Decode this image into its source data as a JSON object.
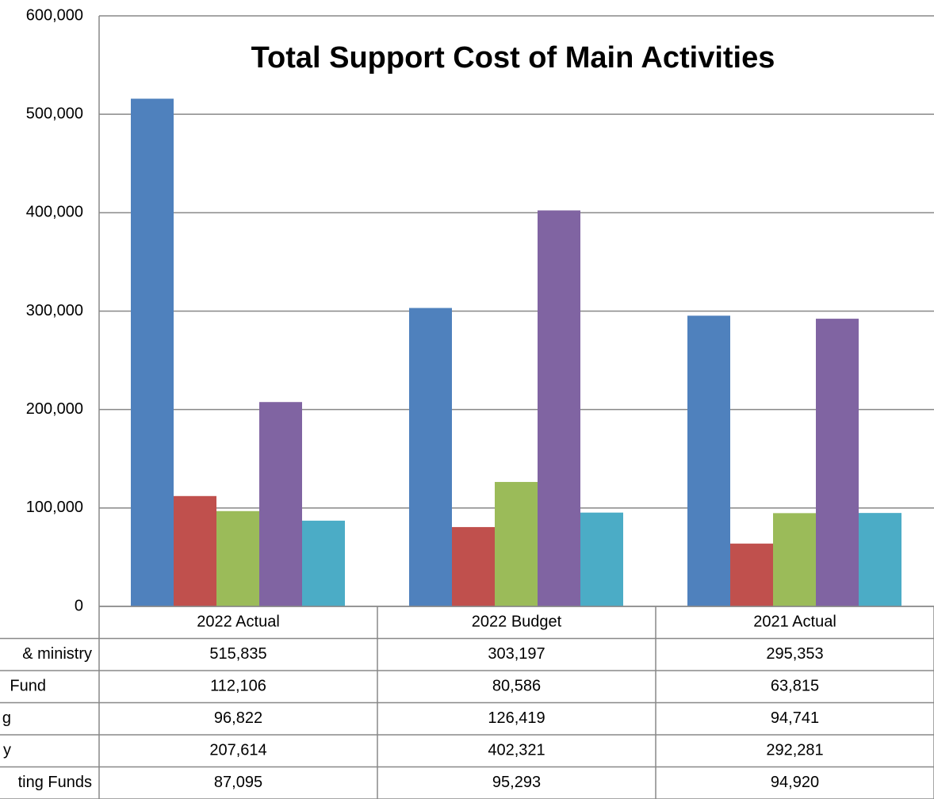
{
  "chart_data": {
    "type": "bar",
    "title": "Total Support Cost of Main Activities",
    "categories": [
      "2022 Actual",
      "2022 Budget",
      "2021 Actual"
    ],
    "series": [
      {
        "name": "& ministry",
        "color": "#4f81bd",
        "values": [
          515835,
          303197,
          295353
        ],
        "value_labels": [
          "515,835",
          "303,197",
          "295,353"
        ]
      },
      {
        "name": "Fund",
        "color": "#c0504d",
        "values": [
          112106,
          80586,
          63815
        ],
        "value_labels": [
          "112,106",
          "80,586",
          "63,815"
        ]
      },
      {
        "name": "g",
        "color": "#9bbb59",
        "values": [
          96822,
          126419,
          94741
        ],
        "value_labels": [
          "96,822",
          "126,419",
          "94,741"
        ]
      },
      {
        "name": "y",
        "color": "#8064a2",
        "values": [
          207614,
          402321,
          292281
        ],
        "value_labels": [
          "207,614",
          "402,321",
          "292,281"
        ]
      },
      {
        "name": "ting Funds",
        "color": "#4bacc6",
        "values": [
          87095,
          95293,
          94920
        ],
        "value_labels": [
          "87,095",
          "95,293",
          "94,920"
        ]
      }
    ],
    "ylim": [
      0,
      600000
    ],
    "yticks": [
      0,
      {
        "value": 100000,
        "label": "100,000"
      },
      {
        "value": 200000,
        "label": "200,000"
      },
      {
        "value": 300000,
        "label": "300,000"
      },
      {
        "value": 400000,
        "label": "400,000"
      },
      {
        "value": 500000,
        "label": "500,000"
      },
      {
        "value": 600000,
        "label": "600,000"
      }
    ],
    "grid": true
  }
}
